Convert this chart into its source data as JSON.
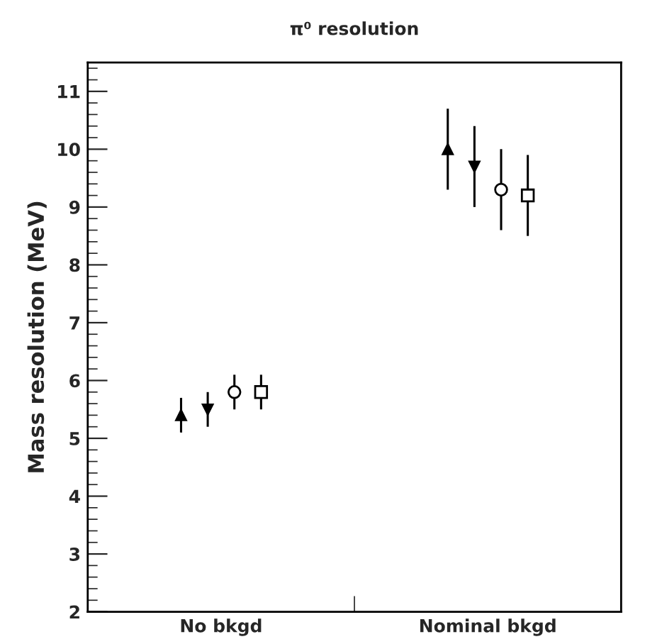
{
  "chart_data": {
    "type": "scatter",
    "title": "π⁰ resolution",
    "ylabel": "Mass resolution (MeV)",
    "categories": [
      "No bkgd",
      "Nominal bkgd"
    ],
    "ylim": [
      2,
      11.5
    ],
    "yticks": [
      2,
      3,
      4,
      5,
      6,
      7,
      8,
      9,
      10,
      11
    ],
    "grid": false,
    "legend": false,
    "series": [
      {
        "marker": "triangle",
        "color": "#000000",
        "x": [
          "No bkgd",
          "Nominal bkgd"
        ],
        "values": [
          5.4,
          10.0
        ],
        "errors": [
          0.3,
          0.7
        ]
      },
      {
        "marker": "triangle-down",
        "color": "#000000",
        "x": [
          "No bkgd",
          "Nominal bkgd"
        ],
        "values": [
          5.5,
          9.7
        ],
        "errors": [
          0.3,
          0.7
        ]
      },
      {
        "marker": "circle",
        "color": "#000000",
        "x": [
          "No bkgd",
          "Nominal bkgd"
        ],
        "values": [
          5.8,
          9.3
        ],
        "errors": [
          0.3,
          0.7
        ]
      },
      {
        "marker": "square",
        "color": "#000000",
        "x": [
          "No bkgd",
          "Nominal bkgd"
        ],
        "values": [
          5.8,
          9.2
        ],
        "errors": [
          0.3,
          0.7
        ]
      }
    ]
  }
}
